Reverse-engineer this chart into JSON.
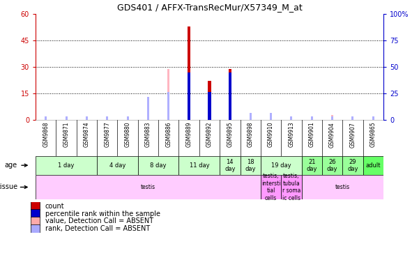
{
  "title": "GDS401 / AFFX-TransRecMur/X57349_M_at",
  "samples": [
    "GSM9868",
    "GSM9871",
    "GSM9874",
    "GSM9877",
    "GSM9880",
    "GSM9883",
    "GSM9886",
    "GSM9889",
    "GSM9892",
    "GSM9895",
    "GSM9898",
    "GSM9910",
    "GSM9913",
    "GSM9901",
    "GSM9904",
    "GSM9907",
    "GSM9865"
  ],
  "left_ylim": [
    0,
    60
  ],
  "right_ylim": [
    0,
    100
  ],
  "left_yticks": [
    0,
    15,
    30,
    45,
    60
  ],
  "right_yticks": [
    0,
    25,
    50,
    75,
    100
  ],
  "red_bars": [
    0,
    0,
    0,
    0,
    0,
    0,
    0,
    53,
    22,
    29,
    0,
    0,
    0,
    0,
    0,
    0,
    0
  ],
  "blue_bars": [
    0,
    0,
    0,
    0,
    0,
    0,
    0,
    27,
    16,
    27,
    0,
    0,
    0,
    0,
    0,
    0,
    0
  ],
  "pink_bars": [
    0,
    0,
    0,
    0,
    0,
    8,
    29,
    0,
    0,
    0,
    3,
    0,
    0,
    0,
    3,
    0,
    0
  ],
  "lavender_bars": [
    2,
    2,
    2,
    2,
    2,
    13,
    16,
    0,
    0,
    0,
    4,
    4,
    2,
    2,
    2,
    2,
    2
  ],
  "age_groups": [
    {
      "label": "1 day",
      "start": 0,
      "end": 2,
      "color": "#ccffcc"
    },
    {
      "label": "4 day",
      "start": 3,
      "end": 4,
      "color": "#ccffcc"
    },
    {
      "label": "8 day",
      "start": 5,
      "end": 6,
      "color": "#ccffcc"
    },
    {
      "label": "11 day",
      "start": 7,
      "end": 8,
      "color": "#ccffcc"
    },
    {
      "label": "14\nday",
      "start": 9,
      "end": 9,
      "color": "#ccffcc"
    },
    {
      "label": "18\nday",
      "start": 10,
      "end": 10,
      "color": "#ccffcc"
    },
    {
      "label": "19 day",
      "start": 11,
      "end": 12,
      "color": "#ccffcc"
    },
    {
      "label": "21\nday",
      "start": 13,
      "end": 13,
      "color": "#99ff99"
    },
    {
      "label": "26\nday",
      "start": 14,
      "end": 14,
      "color": "#99ff99"
    },
    {
      "label": "29\nday",
      "start": 15,
      "end": 15,
      "color": "#99ff99"
    },
    {
      "label": "adult",
      "start": 16,
      "end": 16,
      "color": "#66ff66"
    }
  ],
  "tissue_groups": [
    {
      "label": "testis",
      "start": 0,
      "end": 10,
      "color": "#ffccff"
    },
    {
      "label": "testis,\nintersti\ntial\ncells",
      "start": 11,
      "end": 11,
      "color": "#ff99ff"
    },
    {
      "label": "testis,\ntubula\nr soma\nic cells",
      "start": 12,
      "end": 12,
      "color": "#ff99ff"
    },
    {
      "label": "testis",
      "start": 13,
      "end": 16,
      "color": "#ffccff"
    }
  ],
  "legend_items": [
    {
      "color": "#cc0000",
      "label": "count"
    },
    {
      "color": "#0000cc",
      "label": "percentile rank within the sample"
    },
    {
      "color": "#ffaaaa",
      "label": "value, Detection Call = ABSENT"
    },
    {
      "color": "#aaaaff",
      "label": "rank, Detection Call = ABSENT"
    }
  ]
}
